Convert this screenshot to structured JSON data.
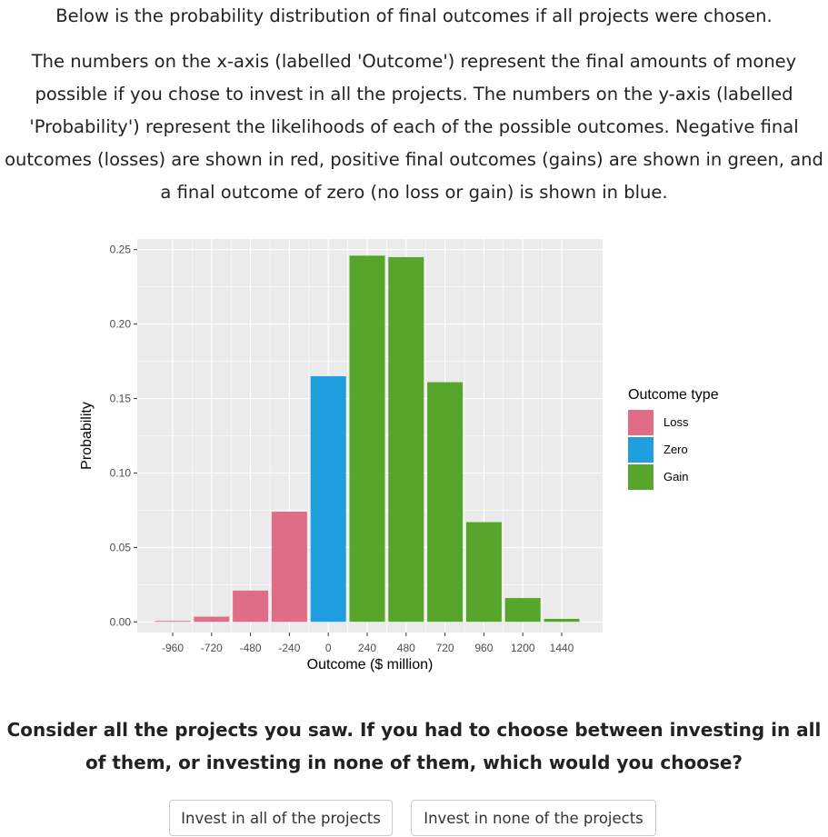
{
  "text": {
    "intro": "Below is the probability distribution of final outcomes if all projects were chosen.",
    "description": "The numbers on the x-axis (labelled 'Outcome') represent the final amounts of money possible if you chose to invest in all the projects. The numbers on the y-axis (labelled 'Probability') represent the likelihoods of each of the possible outcomes. Negative final outcomes (losses) are shown in red, positive final outcomes (gains) are shown in green, and a final outcome of zero (no loss or gain) is shown in blue.",
    "question": "Consider all the projects you saw. If you had to choose between investing in all of them, or investing in none of them, which would you choose?"
  },
  "buttons": {
    "invest_all": "Invest in all of the projects",
    "invest_none": "Invest in none of the projects"
  },
  "chart_data": {
    "type": "bar",
    "xlabel": "Outcome ($ million)",
    "ylabel": "Probability",
    "categories": [
      "-960",
      "-720",
      "-480",
      "-240",
      "0",
      "240",
      "480",
      "720",
      "960",
      "1200",
      "1440"
    ],
    "values": [
      0.0005,
      0.0035,
      0.021,
      0.074,
      0.165,
      0.246,
      0.245,
      0.161,
      0.067,
      0.016,
      0.002
    ],
    "types": [
      "Loss",
      "Loss",
      "Loss",
      "Loss",
      "Zero",
      "Gain",
      "Gain",
      "Gain",
      "Gain",
      "Gain",
      "Gain"
    ],
    "ylim": [
      0,
      0.25
    ],
    "yticks": [
      "0.00",
      "0.05",
      "0.10",
      "0.15",
      "0.20",
      "0.25"
    ],
    "grid": true,
    "legend": {
      "title": "Outcome type",
      "position": "right",
      "entries": [
        {
          "label": "Loss",
          "color": "#E06C88"
        },
        {
          "label": "Zero",
          "color": "#1F9FDF"
        },
        {
          "label": "Gain",
          "color": "#57A62B"
        }
      ]
    },
    "colors": {
      "Loss": "#E06C88",
      "Zero": "#1F9FDF",
      "Gain": "#57A62B",
      "panel": "#EBEBEB",
      "grid": "#FFFFFF"
    }
  }
}
